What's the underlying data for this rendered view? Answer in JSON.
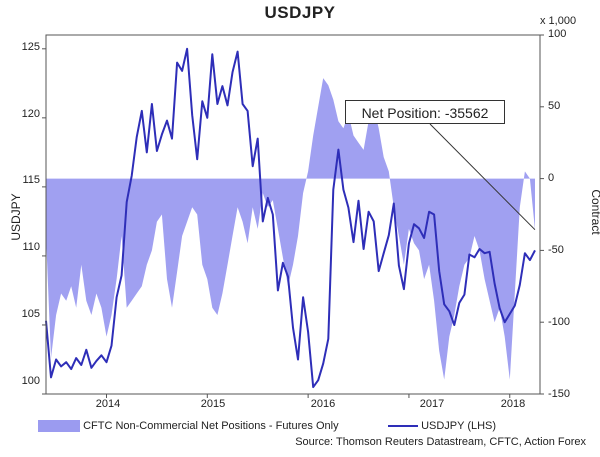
{
  "chart_data": {
    "type": "line",
    "title": "USDJPY",
    "left_axis_label": "USDJPY",
    "right_axis_label": "Contract",
    "right_axis_multiplier": "x 1,000",
    "left_ylim": [
      100,
      126
    ],
    "right_ylim": [
      -150,
      100
    ],
    "left_ticks": [
      "100",
      "105",
      "110",
      "115",
      "120",
      "125"
    ],
    "right_ticks": [
      "-150",
      "-100",
      "-50",
      "0",
      "50",
      "100"
    ],
    "x_ticks": [
      "2014",
      "2015",
      "2016",
      "2017",
      "2018"
    ],
    "xlim": [
      2013.4,
      2018.3
    ],
    "annotation": "Net Position: -35562",
    "source": "Source: Thomson Reuters Datastream, CFTC, Action Forex",
    "series": [
      {
        "name": "CFTC Non-Commercial Net Positions - Futures Only",
        "type": "area",
        "axis": "right",
        "color": "#9b9bf0",
        "x": [
          2013.4,
          2013.45,
          2013.5,
          2013.55,
          2013.6,
          2013.65,
          2013.7,
          2013.75,
          2013.8,
          2013.85,
          2013.9,
          2013.95,
          2014.0,
          2014.05,
          2014.1,
          2014.15,
          2014.2,
          2014.25,
          2014.3,
          2014.35,
          2014.4,
          2014.45,
          2014.5,
          2014.55,
          2014.6,
          2014.65,
          2014.7,
          2014.75,
          2014.8,
          2014.85,
          2014.9,
          2014.95,
          2015.0,
          2015.05,
          2015.1,
          2015.15,
          2015.2,
          2015.25,
          2015.3,
          2015.35,
          2015.4,
          2015.45,
          2015.5,
          2015.55,
          2015.6,
          2015.65,
          2015.7,
          2015.75,
          2015.8,
          2015.85,
          2015.9,
          2015.95,
          2016.0,
          2016.05,
          2016.1,
          2016.15,
          2016.2,
          2016.25,
          2016.3,
          2016.35,
          2016.4,
          2016.45,
          2016.5,
          2016.55,
          2016.6,
          2016.65,
          2016.7,
          2016.75,
          2016.8,
          2016.85,
          2016.9,
          2016.95,
          2017.0,
          2017.05,
          2017.1,
          2017.15,
          2017.2,
          2017.25,
          2017.3,
          2017.35,
          2017.4,
          2017.45,
          2017.5,
          2017.55,
          2017.6,
          2017.65,
          2017.7,
          2017.75,
          2017.8,
          2017.85,
          2017.9,
          2017.95,
          2018.0,
          2018.05,
          2018.1,
          2018.15,
          2018.2,
          2018.25
        ],
        "values": [
          -40,
          -125,
          -95,
          -80,
          -85,
          -75,
          -90,
          -60,
          -85,
          -95,
          -80,
          -90,
          -110,
          -95,
          -70,
          -40,
          -90,
          -85,
          -80,
          -75,
          -60,
          -50,
          -30,
          -25,
          -70,
          -90,
          -65,
          -40,
          -30,
          -20,
          -25,
          -60,
          -70,
          -90,
          -95,
          -80,
          -60,
          -40,
          -20,
          -30,
          -45,
          -20,
          -35,
          -10,
          -20,
          -15,
          -35,
          -55,
          -75,
          -60,
          -40,
          -10,
          5,
          30,
          50,
          70,
          65,
          55,
          40,
          35,
          45,
          30,
          25,
          20,
          40,
          50,
          35,
          15,
          5,
          -20,
          -40,
          -60,
          -35,
          -45,
          -50,
          -70,
          -60,
          -85,
          -120,
          -140,
          -110,
          -95,
          -75,
          -60,
          -55,
          -40,
          -50,
          -70,
          -85,
          -100,
          -90,
          -110,
          -140,
          -80,
          -20,
          5,
          0,
          -35.562
        ]
      },
      {
        "name": "USDJPY (LHS)",
        "type": "line",
        "axis": "left",
        "color": "#2e2eb8",
        "x": [
          2013.4,
          2013.45,
          2013.5,
          2013.55,
          2013.6,
          2013.65,
          2013.7,
          2013.75,
          2013.8,
          2013.85,
          2013.9,
          2013.95,
          2014.0,
          2014.05,
          2014.1,
          2014.15,
          2014.2,
          2014.25,
          2014.3,
          2014.35,
          2014.4,
          2014.45,
          2014.5,
          2014.55,
          2014.6,
          2014.65,
          2014.7,
          2014.75,
          2014.8,
          2014.85,
          2014.9,
          2014.95,
          2015.0,
          2015.05,
          2015.1,
          2015.15,
          2015.2,
          2015.25,
          2015.3,
          2015.35,
          2015.4,
          2015.45,
          2015.5,
          2015.55,
          2015.6,
          2015.65,
          2015.7,
          2015.75,
          2015.8,
          2015.85,
          2015.9,
          2015.95,
          2016.0,
          2016.05,
          2016.1,
          2016.15,
          2016.2,
          2016.25,
          2016.3,
          2016.35,
          2016.4,
          2016.45,
          2016.5,
          2016.55,
          2016.6,
          2016.65,
          2016.7,
          2016.75,
          2016.8,
          2016.85,
          2016.9,
          2016.95,
          2017.0,
          2017.05,
          2017.1,
          2017.15,
          2017.2,
          2017.25,
          2017.3,
          2017.35,
          2017.4,
          2017.45,
          2017.5,
          2017.55,
          2017.6,
          2017.65,
          2017.7,
          2017.75,
          2017.8,
          2017.85,
          2017.9,
          2017.95,
          2018.0,
          2018.05,
          2018.1,
          2018.15,
          2018.2,
          2018.25
        ],
        "values": [
          105.3,
          101.2,
          102.5,
          102.0,
          102.3,
          101.8,
          102.6,
          102.1,
          103.2,
          101.9,
          102.4,
          102.8,
          102.3,
          103.5,
          107.0,
          108.6,
          113.9,
          115.8,
          118.6,
          120.5,
          117.5,
          121.0,
          117.6,
          118.8,
          119.8,
          118.5,
          124.0,
          123.4,
          125.0,
          120.2,
          117.0,
          121.2,
          120.0,
          124.6,
          121.0,
          122.3,
          120.9,
          123.3,
          124.8,
          121.0,
          120.5,
          116.5,
          118.5,
          112.5,
          114.2,
          113.0,
          107.5,
          109.5,
          108.5,
          104.8,
          102.5,
          107.0,
          104.5,
          100.5,
          101.0,
          102.2,
          104.0,
          114.8,
          117.7,
          114.8,
          113.5,
          111.0,
          114.0,
          110.5,
          113.2,
          112.5,
          108.9,
          110.2,
          111.5,
          113.8,
          109.3,
          107.6,
          110.9,
          112.3,
          112.0,
          111.3,
          113.2,
          113.0,
          108.9,
          106.5,
          106.0,
          105.0,
          106.6,
          107.2,
          110.1,
          109.9,
          110.5,
          110.2,
          110.3,
          108.0,
          106.2,
          105.2,
          105.8,
          106.4,
          107.9,
          110.2,
          109.7,
          110.4
        ]
      }
    ]
  }
}
